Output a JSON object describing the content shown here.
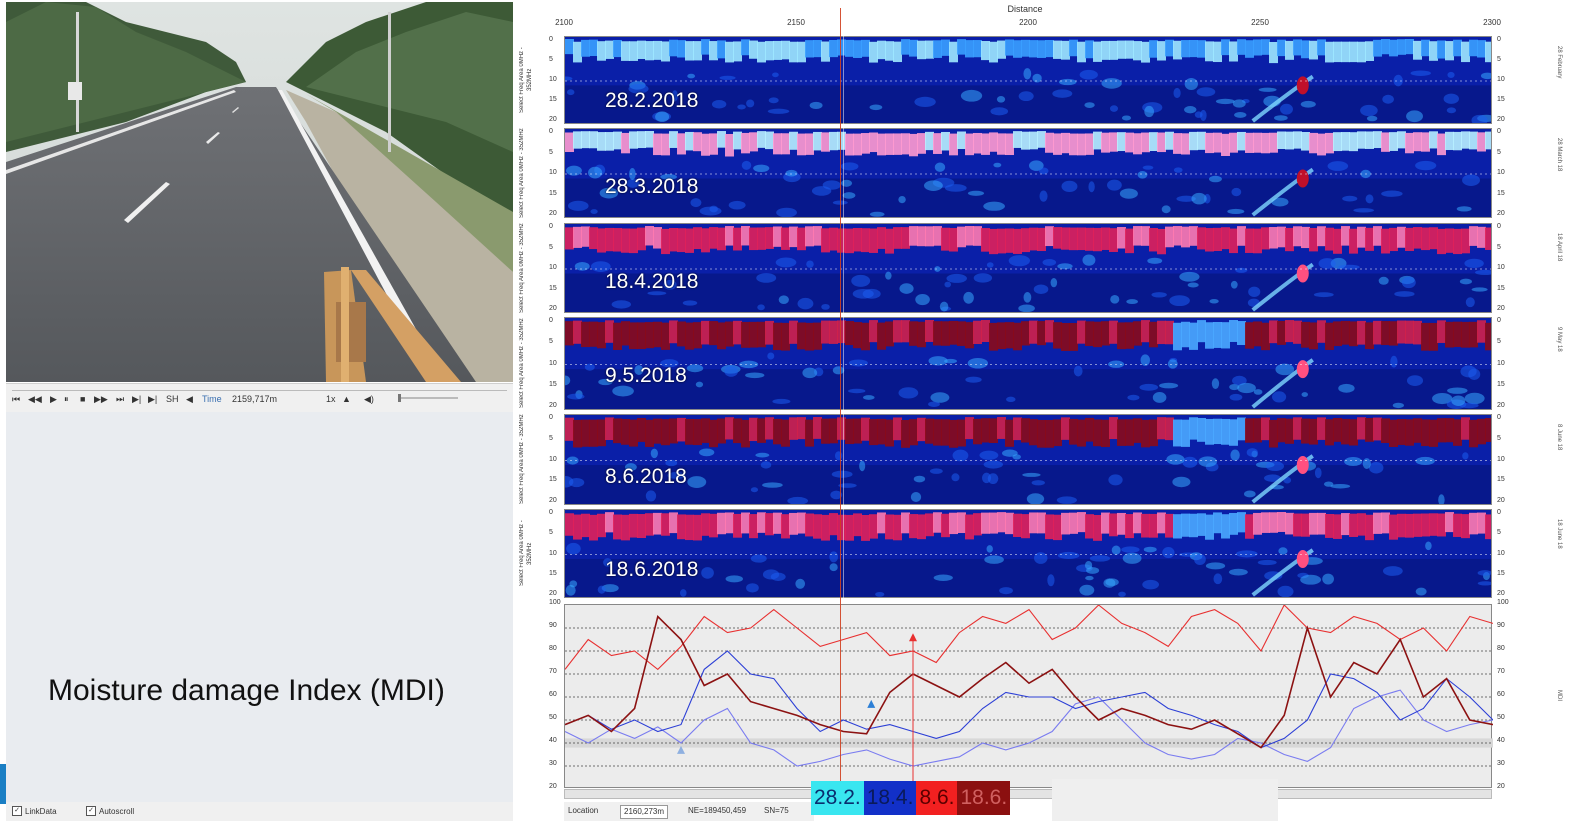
{
  "player": {
    "time_label": "Time",
    "time_value": "2159,717m",
    "speed": "1x",
    "controls": [
      "⏮",
      "◀◀",
      "▶",
      "⏸",
      "■",
      "▶▶",
      "⏭",
      "▶|",
      "SH",
      "◀"
    ]
  },
  "left_panel": {
    "caption": "Moisture damage Index (MDI)",
    "checkbox_link": "LinkData",
    "checkbox_autoscroll": "Autoscroll"
  },
  "gpr": {
    "distance_title": "Distance",
    "x_ticks": [
      "2100",
      "2150",
      "2200",
      "2250",
      "2300"
    ],
    "y_label": "Select Freq Area 0MHz - 352MHz",
    "depth_ticks": [
      "0",
      "5",
      "10",
      "15",
      "20"
    ],
    "panels": [
      {
        "date": "28.2.2018",
        "side": "28 February"
      },
      {
        "date": "28.3.2018",
        "side": "28 March 18"
      },
      {
        "date": "18.4.2018",
        "side": "18 April 18"
      },
      {
        "date": "9.5.2018",
        "side": "9 May 18"
      },
      {
        "date": "8.6.2018",
        "side": "8 June 18"
      },
      {
        "date": "18.6.2018",
        "side": "18 June 18"
      }
    ]
  },
  "mdi_chart": {
    "y_ticks": [
      "100",
      "90",
      "80",
      "70",
      "60",
      "50",
      "40",
      "30",
      "20"
    ],
    "side": "MDI"
  },
  "status": {
    "location_label": "Location",
    "location_value": "2160,273m",
    "coords": "NE=189450,459",
    "sn": "SN=75"
  },
  "legend": {
    "items": [
      {
        "label": "28.2.",
        "bg": "#39e6f0",
        "fg": "#0a2e6e"
      },
      {
        "label": "18.4.",
        "bg": "#1230c8",
        "fg": "#0a1a5a"
      },
      {
        "label": "8.6.",
        "bg": "#f22020",
        "fg": "#5a0000"
      },
      {
        "label": "18.6.",
        "bg": "#8b1010",
        "fg": "#d06060"
      }
    ]
  },
  "chart_data": {
    "type": "line",
    "x": [
      2100,
      2105,
      2110,
      2115,
      2120,
      2125,
      2130,
      2135,
      2140,
      2145,
      2150,
      2155,
      2160,
      2165,
      2170,
      2175,
      2180,
      2185,
      2190,
      2195,
      2200,
      2205,
      2210,
      2215,
      2220,
      2225,
      2230,
      2235,
      2240,
      2245,
      2250,
      2255,
      2260,
      2265,
      2270,
      2275,
      2280,
      2285,
      2290,
      2295,
      2300
    ],
    "ylim": [
      20,
      100
    ],
    "series": [
      {
        "name": "28.2.",
        "color": "#7a7cf0",
        "values": [
          45,
          40,
          46,
          42,
          47,
          40,
          50,
          55,
          40,
          37,
          30,
          32,
          35,
          37,
          33,
          30,
          32,
          34,
          40,
          37,
          40,
          45,
          57,
          60,
          50,
          40,
          35,
          33,
          35,
          42,
          40,
          35,
          32,
          38,
          55,
          60,
          63,
          50,
          45,
          48,
          50
        ]
      },
      {
        "name": "18.4.",
        "color": "#2c3fd6",
        "values": [
          48,
          52,
          46,
          50,
          45,
          48,
          72,
          80,
          70,
          68,
          55,
          45,
          50,
          46,
          48,
          45,
          42,
          45,
          55,
          62,
          60,
          60,
          55,
          58,
          60,
          62,
          55,
          52,
          48,
          45,
          38,
          42,
          50,
          70,
          68,
          62,
          50,
          55,
          68,
          60,
          50
        ]
      },
      {
        "name": "8.6.",
        "color": "#e83030",
        "values": [
          72,
          85,
          78,
          80,
          72,
          82,
          95,
          88,
          90,
          98,
          90,
          82,
          85,
          88,
          78,
          80,
          75,
          88,
          95,
          92,
          98,
          85,
          90,
          100,
          92,
          88,
          82,
          95,
          98,
          92,
          80,
          100,
          90,
          88,
          95,
          92,
          85,
          90,
          80,
          95,
          92
        ]
      },
      {
        "name": "18.6.",
        "color": "#8c1212",
        "values": [
          48,
          52,
          45,
          55,
          95,
          85,
          65,
          70,
          58,
          55,
          52,
          48,
          45,
          44,
          62,
          70,
          65,
          60,
          68,
          75,
          66,
          72,
          60,
          50,
          55,
          52,
          48,
          46,
          50,
          44,
          38,
          52,
          90,
          60,
          75,
          70,
          85,
          60,
          68,
          50,
          48
        ]
      }
    ]
  }
}
